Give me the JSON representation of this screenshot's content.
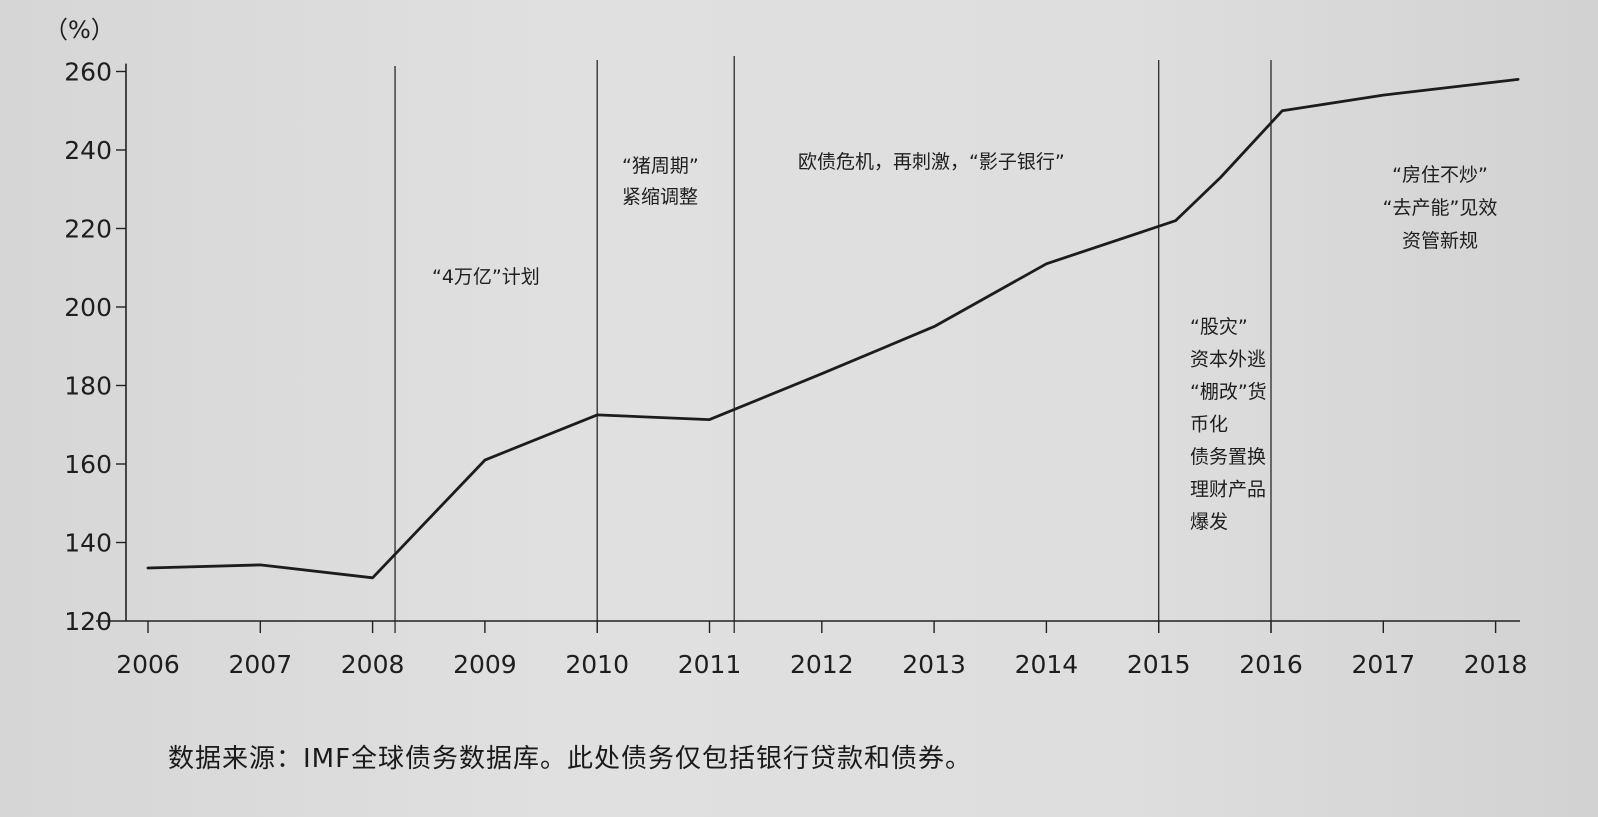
{
  "chart_data": {
    "type": "line",
    "ylabel": "（%）",
    "ylim": [
      120,
      262
    ],
    "yticks": [
      120,
      140,
      160,
      180,
      200,
      220,
      240,
      260
    ],
    "xlim": [
      2005.6,
      2018.3
    ],
    "xticks": [
      2006,
      2007,
      2008,
      2009,
      2010,
      2011,
      2012,
      2013,
      2014,
      2015,
      2016,
      2017,
      2018
    ],
    "series": [
      {
        "points": [
          {
            "x": 2006.0,
            "y": 133.5
          },
          {
            "x": 2007.0,
            "y": 134.3
          },
          {
            "x": 2008.0,
            "y": 131.0
          },
          {
            "x": 2009.0,
            "y": 161.0
          },
          {
            "x": 2010.0,
            "y": 172.5
          },
          {
            "x": 2011.0,
            "y": 171.3
          },
          {
            "x": 2012.0,
            "y": 183.0
          },
          {
            "x": 2013.0,
            "y": 195.0
          },
          {
            "x": 2014.0,
            "y": 211.0
          },
          {
            "x": 2015.15,
            "y": 222.0
          },
          {
            "x": 2015.55,
            "y": 233.0
          },
          {
            "x": 2016.1,
            "y": 250.0
          },
          {
            "x": 2017.0,
            "y": 254.0
          },
          {
            "x": 2018.2,
            "y": 258.0
          }
        ]
      }
    ],
    "vlines": [
      {
        "x": 2008.2
      },
      {
        "x": 2010.0
      },
      {
        "x": 2011.22
      },
      {
        "x": 2015.0
      },
      {
        "x": 2016.0
      }
    ],
    "annotations": [
      {
        "lines": [
          "“4万亿”计划"
        ]
      },
      {
        "lines": [
          "“猪周期”",
          "紧缩调整"
        ]
      },
      {
        "lines": [
          "欧债危机，再刺激，“影子银行”"
        ]
      },
      {
        "lines": [
          "“股灾”",
          "资本外逃",
          "“棚改”货",
          "币化",
          "债务置换",
          "理财产品",
          "爆发"
        ]
      },
      {
        "lines": [
          "“房住不炒”",
          "“去产能”见效",
          "资管新规"
        ]
      }
    ]
  },
  "caption": "数据来源：IMF全球债务数据库。此处债务仅包括银行贷款和债券。"
}
